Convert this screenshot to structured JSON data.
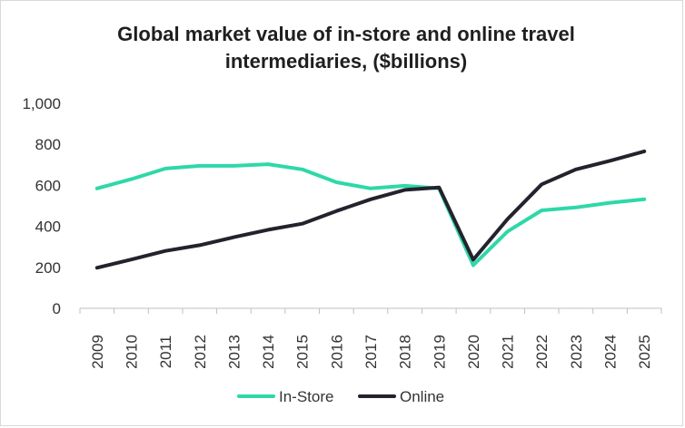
{
  "chart_data": {
    "type": "line",
    "title": "Global market value of in-store and online travel intermediaries, ($billions)",
    "xlabel": "",
    "ylabel": "",
    "x": [
      "2009",
      "2010",
      "2011",
      "2012",
      "2013",
      "2014",
      "2015",
      "2016",
      "2017",
      "2018",
      "2019",
      "2020",
      "2021",
      "2022",
      "2023",
      "2024",
      "2025"
    ],
    "ylim": [
      0,
      1000
    ],
    "yticks": [
      "0",
      "200",
      "400",
      "600",
      "800",
      "1,000"
    ],
    "grid": false,
    "legend_position": "bottom",
    "series": [
      {
        "name": "In-Store",
        "color": "#2ed8a8",
        "values": [
          585,
          630,
          682,
          695,
          695,
          703,
          678,
          615,
          585,
          598,
          585,
          210,
          375,
          478,
          492,
          515,
          532
        ]
      },
      {
        "name": "Online",
        "color": "#23232e",
        "values": [
          198,
          238,
          280,
          308,
          347,
          383,
          413,
          475,
          532,
          578,
          590,
          237,
          435,
          605,
          678,
          720,
          766
        ]
      }
    ]
  }
}
